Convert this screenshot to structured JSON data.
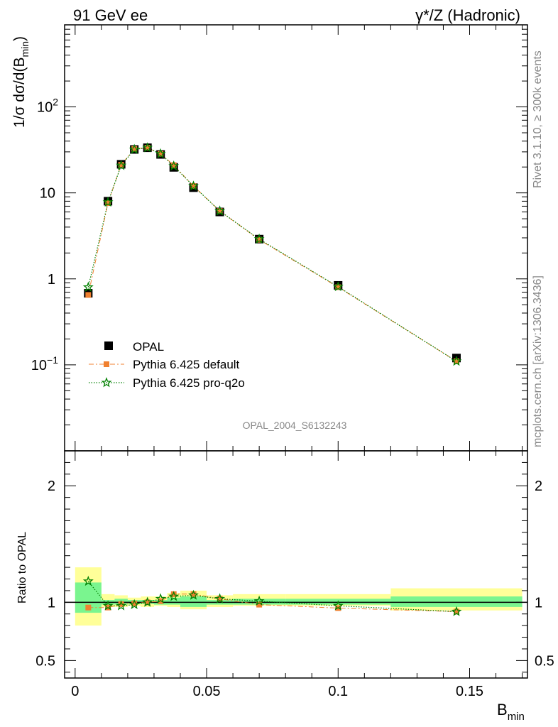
{
  "header": {
    "left_label": "91 GeV ee",
    "right_label": "γ*/Z (Hadronic)"
  },
  "side_labels": {
    "rivet": "Rivet 3.1.10, ≥ 300k events",
    "source": "mcplots.cern.ch [arXiv:1306.3436]"
  },
  "analysis_label": "OPAL_2004_S6132243",
  "chart_data": [
    {
      "type": "scatter",
      "panel": "main",
      "ylabel": "1/σ dσ/d(B_min)",
      "yscale": "log",
      "ylim": [
        0.01,
        900
      ],
      "ytick_labels": [
        "10^-1",
        "1",
        "10",
        "10^2"
      ],
      "legend_placement": "lower-left",
      "x": [
        0.005,
        0.0125,
        0.0175,
        0.0225,
        0.0275,
        0.0325,
        0.0375,
        0.045,
        0.055,
        0.07,
        0.1,
        0.145
      ],
      "series": [
        {
          "name": "OPAL",
          "color": "#000000",
          "marker": "square",
          "values": [
            0.68,
            8.0,
            21.5,
            32.0,
            33.5,
            28.0,
            19.8,
            11.5,
            6.0,
            2.9,
            0.84,
            0.12
          ]
        },
        {
          "name": "Pythia 6.425 default",
          "color": "#f08030",
          "marker": "square-small",
          "line": "dashdot",
          "values": [
            0.65,
            7.6,
            21.2,
            32.5,
            33.5,
            28.5,
            21.0,
            12.0,
            6.15,
            2.85,
            0.8,
            0.11
          ]
        },
        {
          "name": "Pythia 6.425 pro-q2o",
          "color": "#008000",
          "marker": "star",
          "line": "dotted",
          "values": [
            0.8,
            7.8,
            20.8,
            32.0,
            33.5,
            28.5,
            20.5,
            12.0,
            6.15,
            2.9,
            0.81,
            0.11
          ]
        }
      ]
    },
    {
      "type": "scatter",
      "panel": "ratio",
      "xlabel": "B_min",
      "ylabel": "Ratio to OPAL",
      "xlim": [
        -0.004,
        0.172
      ],
      "ylim": [
        0.35,
        2.3
      ],
      "xtick_labels": [
        "0",
        "0.05",
        "0.1",
        "0.15"
      ],
      "ytick_labels": [
        "0.5",
        "1",
        "2"
      ],
      "bins": [
        [
          0.0,
          0.01
        ],
        [
          0.01,
          0.015
        ],
        [
          0.015,
          0.02
        ],
        [
          0.02,
          0.025
        ],
        [
          0.025,
          0.03
        ],
        [
          0.03,
          0.035
        ],
        [
          0.035,
          0.04
        ],
        [
          0.04,
          0.05
        ],
        [
          0.05,
          0.06
        ],
        [
          0.06,
          0.08
        ],
        [
          0.08,
          0.12
        ],
        [
          0.12,
          0.17
        ]
      ],
      "band_stat": [
        [
          0.91,
          1.17
        ],
        [
          0.98,
          1.02
        ],
        [
          0.98,
          1.03
        ],
        [
          0.985,
          1.02
        ],
        [
          0.985,
          1.02
        ],
        [
          0.98,
          1.02
        ],
        [
          0.98,
          1.04
        ],
        [
          0.96,
          1.05
        ],
        [
          0.98,
          1.02
        ],
        [
          0.98,
          1.03
        ],
        [
          0.98,
          1.03
        ],
        [
          0.96,
          1.05
        ]
      ],
      "band_total": [
        [
          0.8,
          1.3
        ],
        [
          0.96,
          1.07
        ],
        [
          0.96,
          1.06
        ],
        [
          0.97,
          1.04
        ],
        [
          0.96,
          1.05
        ],
        [
          0.97,
          1.05
        ],
        [
          0.96,
          1.08
        ],
        [
          0.94,
          1.1
        ],
        [
          0.96,
          1.06
        ],
        [
          0.97,
          1.07
        ],
        [
          0.97,
          1.07
        ],
        [
          0.93,
          1.12
        ]
      ],
      "x": [
        0.005,
        0.0125,
        0.0175,
        0.0225,
        0.0275,
        0.0325,
        0.0375,
        0.045,
        0.055,
        0.07,
        0.1,
        0.145
      ],
      "series": [
        {
          "name": "Pythia 6.425 default",
          "color": "#f08030",
          "values": [
            0.955,
            0.955,
            0.985,
            0.99,
            1.0,
            1.01,
            1.07,
            1.07,
            1.03,
            0.98,
            0.95,
            0.92
          ]
        },
        {
          "name": "Pythia 6.425 pro-q2o",
          "color": "#008000",
          "values": [
            1.18,
            0.97,
            0.97,
            0.98,
            1.0,
            1.03,
            1.05,
            1.06,
            1.03,
            1.01,
            0.97,
            0.92
          ]
        }
      ]
    }
  ]
}
